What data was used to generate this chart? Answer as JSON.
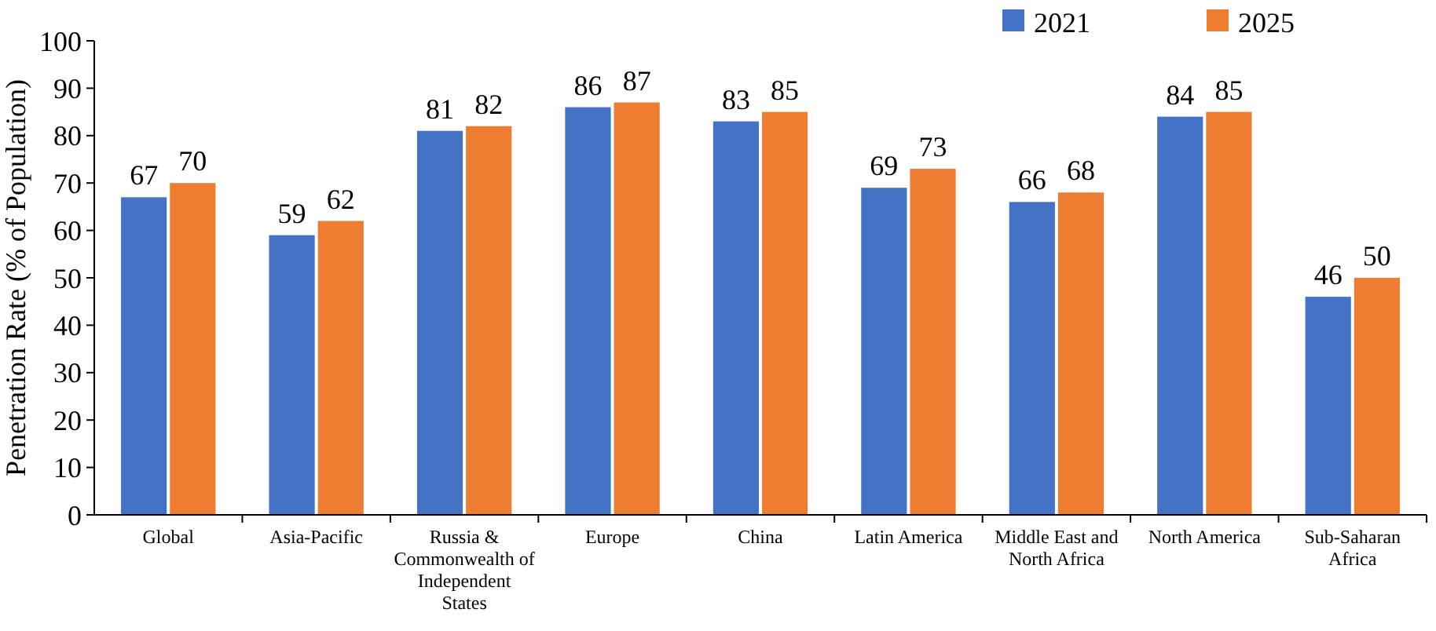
{
  "chart_data": {
    "type": "bar",
    "ylabel": "Penetration Rate  (% of Population)",
    "categories": [
      "Global",
      "Asia-Pacific",
      "Russia & Commonwealth of Independent States",
      "Europe",
      "China",
      "Latin America",
      "Middle East and North Africa",
      "North America",
      "Sub-Saharan Africa"
    ],
    "series": [
      {
        "name": "2021",
        "color": "#4472c4",
        "values": [
          67,
          59,
          81,
          86,
          83,
          69,
          66,
          84,
          46
        ]
      },
      {
        "name": "2025",
        "color": "#ed7d31",
        "values": [
          70,
          62,
          82,
          87,
          85,
          73,
          68,
          85,
          50
        ]
      }
    ],
    "ylim": [
      0,
      100
    ],
    "yticks": [
      0,
      10,
      20,
      30,
      40,
      50,
      60,
      70,
      80,
      90,
      100
    ],
    "data_labels": true,
    "legend": "top right",
    "grid": false
  }
}
